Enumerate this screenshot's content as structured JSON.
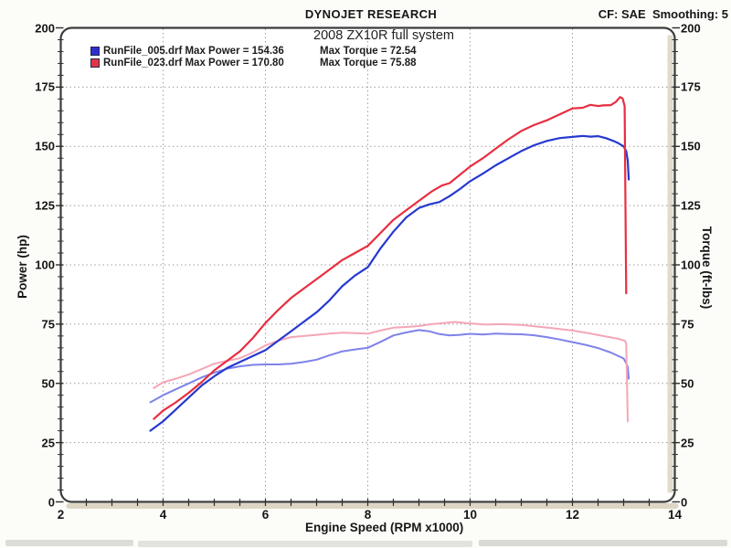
{
  "header": {
    "brand": "DYNOJET RESEARCH",
    "correction": "CF: SAE  Smoothing: 5"
  },
  "colors": {
    "page_bg": "#fcfcf9",
    "plot_bg": "#ffffff",
    "border": "#3c3c3c",
    "grid": "#8f8f8f",
    "tick": "#2e2e2e",
    "text": "#161616",
    "scan_shadow": "#d9d2bf",
    "blue_power": "#2639cf",
    "red_power": "#e82e40",
    "blue_torque": "#7e82e8",
    "pink_torque": "#f4a6b6"
  },
  "chart_data": {
    "type": "line",
    "title": "2008 ZX10R full system",
    "xlabel": "Engine Speed (RPM x1000)",
    "ylabel_left": "Power (hp)",
    "ylabel_right": "Torque (ft-lbs)",
    "xlim": [
      2,
      14
    ],
    "ylim": [
      0,
      200
    ],
    "x_major_ticks": [
      2,
      4,
      6,
      8,
      10,
      12,
      14
    ],
    "x_minor_step": 0.5,
    "y_major_ticks": [
      0,
      25,
      50,
      75,
      100,
      125,
      150,
      175,
      200
    ],
    "y_minor_step": 5,
    "grid": "dotted horizontal at y majors, dotted vertical at interior x majors",
    "legend_position": "top-left inside plot",
    "legend": [
      {
        "file": "RunFile_005.drf",
        "max_power": 154.36,
        "max_torque": 72.54,
        "power_text": "RunFile_005.drf Max Power = 154.36",
        "torque_text": "Max Torque = 72.54",
        "swatch_color": "#2e2ecc"
      },
      {
        "file": "RunFile_023.drf",
        "max_power": 170.8,
        "max_torque": 75.88,
        "power_text": "RunFile_023.drf Max Power = 170.80",
        "torque_text": "Max Torque = 75.88",
        "swatch_color": "#e03642"
      }
    ],
    "series": [
      {
        "name": "runfile-005-torque",
        "axis": "right",
        "unit": "ft-lbs",
        "color": "#7e82e8",
        "width": 2,
        "points": [
          [
            3.75,
            42
          ],
          [
            4,
            45
          ],
          [
            4.25,
            47.5
          ],
          [
            4.5,
            50
          ],
          [
            4.75,
            52.5
          ],
          [
            5,
            54.5
          ],
          [
            5.25,
            56.2
          ],
          [
            5.5,
            57.2
          ],
          [
            5.75,
            57.8
          ],
          [
            6,
            58
          ],
          [
            6.25,
            58
          ],
          [
            6.5,
            58.3
          ],
          [
            6.75,
            59
          ],
          [
            7,
            60
          ],
          [
            7.25,
            61.8
          ],
          [
            7.5,
            63.5
          ],
          [
            7.75,
            64.3
          ],
          [
            8,
            65
          ],
          [
            8.25,
            67.5
          ],
          [
            8.5,
            70.2
          ],
          [
            8.75,
            71.5
          ],
          [
            9,
            72.5
          ],
          [
            9.2,
            72
          ],
          [
            9.4,
            70.8
          ],
          [
            9.6,
            70.2
          ],
          [
            9.8,
            70.5
          ],
          [
            10,
            70.9
          ],
          [
            10.25,
            70.6
          ],
          [
            10.5,
            71
          ],
          [
            10.75,
            70.8
          ],
          [
            11,
            70.7
          ],
          [
            11.25,
            70.3
          ],
          [
            11.5,
            69.5
          ],
          [
            11.75,
            68.5
          ],
          [
            12,
            67.4
          ],
          [
            12.25,
            66.3
          ],
          [
            12.5,
            64.9
          ],
          [
            12.75,
            63
          ],
          [
            13,
            60.5
          ],
          [
            13.05,
            58.5
          ],
          [
            13.08,
            57
          ],
          [
            13.1,
            52
          ]
        ]
      },
      {
        "name": "runfile-023-torque",
        "axis": "right",
        "unit": "ft-lbs",
        "color": "#f4a6b6",
        "width": 2,
        "points": [
          [
            3.82,
            48
          ],
          [
            4,
            50.5
          ],
          [
            4.25,
            52
          ],
          [
            4.5,
            53.7
          ],
          [
            4.75,
            56
          ],
          [
            5,
            58.3
          ],
          [
            5.25,
            59.5
          ],
          [
            5.5,
            60.6
          ],
          [
            5.75,
            63
          ],
          [
            6,
            66
          ],
          [
            6.25,
            68
          ],
          [
            6.5,
            69.5
          ],
          [
            6.75,
            70
          ],
          [
            7,
            70.5
          ],
          [
            7.25,
            71
          ],
          [
            7.5,
            71.4
          ],
          [
            7.75,
            71.2
          ],
          [
            8,
            71
          ],
          [
            8.25,
            72.3
          ],
          [
            8.5,
            73.5
          ],
          [
            8.75,
            73.8
          ],
          [
            9,
            74.2
          ],
          [
            9.25,
            75
          ],
          [
            9.5,
            75.5
          ],
          [
            9.7,
            75.9
          ],
          [
            10,
            75.3
          ],
          [
            10.3,
            74.8
          ],
          [
            10.6,
            75
          ],
          [
            11,
            74.7
          ],
          [
            11.3,
            74
          ],
          [
            11.6,
            73.3
          ],
          [
            12,
            72.3
          ],
          [
            12.3,
            71.2
          ],
          [
            12.6,
            70
          ],
          [
            12.9,
            68.8
          ],
          [
            13.02,
            68
          ],
          [
            13.05,
            67
          ],
          [
            13.08,
            34
          ]
        ]
      },
      {
        "name": "runfile-005-power",
        "axis": "left",
        "unit": "hp",
        "color": "#2639cf",
        "width": 2.2,
        "points": [
          [
            3.75,
            30
          ],
          [
            4,
            34
          ],
          [
            4.25,
            39
          ],
          [
            4.5,
            44
          ],
          [
            4.75,
            49
          ],
          [
            5,
            53
          ],
          [
            5.25,
            56.5
          ],
          [
            5.5,
            59
          ],
          [
            5.75,
            61.5
          ],
          [
            6,
            64
          ],
          [
            6.25,
            68
          ],
          [
            6.5,
            72
          ],
          [
            6.75,
            76
          ],
          [
            7,
            80
          ],
          [
            7.25,
            85
          ],
          [
            7.5,
            91
          ],
          [
            7.75,
            95.5
          ],
          [
            8,
            99
          ],
          [
            8.25,
            107
          ],
          [
            8.5,
            114
          ],
          [
            8.75,
            120
          ],
          [
            9,
            124
          ],
          [
            9.2,
            125.5
          ],
          [
            9.4,
            126.5
          ],
          [
            9.6,
            129
          ],
          [
            9.8,
            132
          ],
          [
            10,
            135.3
          ],
          [
            10.25,
            138.5
          ],
          [
            10.5,
            142
          ],
          [
            10.75,
            145
          ],
          [
            11,
            148
          ],
          [
            11.25,
            150.5
          ],
          [
            11.5,
            152.3
          ],
          [
            11.75,
            153.5
          ],
          [
            12,
            154
          ],
          [
            12.2,
            154.4
          ],
          [
            12.35,
            154.1
          ],
          [
            12.5,
            154.3
          ],
          [
            12.65,
            153.5
          ],
          [
            12.8,
            152.3
          ],
          [
            12.9,
            151.3
          ],
          [
            13,
            150
          ],
          [
            13.05,
            148
          ],
          [
            13.08,
            144
          ],
          [
            13.1,
            136
          ]
        ]
      },
      {
        "name": "runfile-023-power",
        "axis": "left",
        "unit": "hp",
        "color": "#e82e40",
        "width": 2.2,
        "points": [
          [
            3.82,
            35
          ],
          [
            4,
            38.5
          ],
          [
            4.25,
            42
          ],
          [
            4.5,
            46
          ],
          [
            4.75,
            50.5
          ],
          [
            5,
            55.5
          ],
          [
            5.25,
            59.5
          ],
          [
            5.5,
            63.5
          ],
          [
            5.75,
            69
          ],
          [
            6,
            75.5
          ],
          [
            6.25,
            81
          ],
          [
            6.5,
            86
          ],
          [
            6.75,
            90
          ],
          [
            7,
            94
          ],
          [
            7.25,
            98
          ],
          [
            7.5,
            102
          ],
          [
            7.75,
            105
          ],
          [
            8,
            108
          ],
          [
            8.25,
            113.5
          ],
          [
            8.5,
            119
          ],
          [
            8.75,
            123
          ],
          [
            9,
            127
          ],
          [
            9.25,
            131
          ],
          [
            9.45,
            133.5
          ],
          [
            9.6,
            134.5
          ],
          [
            9.8,
            138
          ],
          [
            10,
            141.5
          ],
          [
            10.25,
            145
          ],
          [
            10.5,
            149
          ],
          [
            10.75,
            153
          ],
          [
            11,
            156.5
          ],
          [
            11.25,
            159
          ],
          [
            11.5,
            161
          ],
          [
            11.75,
            163.5
          ],
          [
            12,
            166
          ],
          [
            12.2,
            166.3
          ],
          [
            12.35,
            167.5
          ],
          [
            12.5,
            167
          ],
          [
            12.6,
            167.3
          ],
          [
            12.75,
            167.4
          ],
          [
            12.85,
            168.8
          ],
          [
            12.93,
            170.8
          ],
          [
            12.98,
            170.2
          ],
          [
            13.02,
            167
          ],
          [
            13.05,
            88
          ]
        ]
      }
    ]
  }
}
